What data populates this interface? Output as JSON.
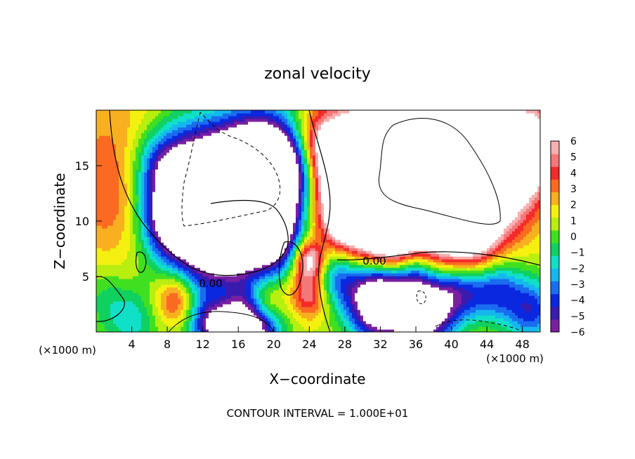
{
  "chart_data": {
    "type": "heatmap",
    "title": "zonal velocity",
    "xlabel": "X−coordinate",
    "ylabel": "Z−coordinate",
    "x_unit_left": "(×1000 m)",
    "x_unit_right": "(×1000 m)",
    "xlim": [
      0,
      50
    ],
    "ylim": [
      0,
      20
    ],
    "x_ticks": [
      4,
      8,
      12,
      16,
      20,
      24,
      28,
      32,
      36,
      40,
      44,
      48
    ],
    "y_ticks": [
      5,
      10,
      15
    ],
    "colorbar": {
      "range": [
        -6,
        6
      ],
      "ticks": [
        6,
        5,
        4,
        3,
        2,
        1,
        0,
        "−1",
        "−2",
        "−3",
        "−4",
        "−5",
        "−6"
      ],
      "colors": [
        "#7a1fa2",
        "#3a1bb0",
        "#0a28e0",
        "#1a6cf0",
        "#15b8ee",
        "#10e0c8",
        "#10d060",
        "#40e020",
        "#b8ee10",
        "#f4f010",
        "#f8b020",
        "#fb6a20",
        "#f52a2a",
        "#f57878",
        "#f7b0b0"
      ],
      "saturated_color": "#ffffff"
    },
    "contour_labels": [
      "0.00",
      "0.00"
    ],
    "contour_interval": "CONTOUR INTERVAL = 1.000E+01",
    "field_sources": [
      {
        "x": 1,
        "z": 19,
        "u": 1.0,
        "s": 6
      },
      {
        "x": 3,
        "z": 12,
        "u": 2.5,
        "s": 4
      },
      {
        "x": 5,
        "z": 16,
        "u": 0.5,
        "s": 4
      },
      {
        "x": 7,
        "z": 15,
        "u": -3.0,
        "s": 2.2
      },
      {
        "x": 8,
        "z": 10,
        "u": -4.0,
        "s": 2.2
      },
      {
        "x": 11,
        "z": 13,
        "u": -9.0,
        "s": 4
      },
      {
        "x": 14,
        "z": 10,
        "u": -10.0,
        "s": 4
      },
      {
        "x": 17,
        "z": 12,
        "u": -9.0,
        "s": 3.5
      },
      {
        "x": 19,
        "z": 16,
        "u": -8.0,
        "s": 3
      },
      {
        "x": 20,
        "z": 8,
        "u": -4.5,
        "s": 1.8
      },
      {
        "x": 22,
        "z": 15,
        "u": -4.0,
        "s": 2
      },
      {
        "x": 21,
        "z": 11,
        "u": -3.5,
        "s": 2
      },
      {
        "x": 25,
        "z": 17,
        "u": 3.0,
        "s": 2
      },
      {
        "x": 24,
        "z": 13,
        "u": -1.0,
        "s": 2
      },
      {
        "x": 29,
        "z": 14,
        "u": 10.0,
        "s": 3.5
      },
      {
        "x": 34,
        "z": 14,
        "u": 12.0,
        "s": 4.5
      },
      {
        "x": 40,
        "z": 14,
        "u": 11.0,
        "s": 4
      },
      {
        "x": 45,
        "z": 15,
        "u": 9.0,
        "s": 3.5
      },
      {
        "x": 49,
        "z": 17,
        "u": 5.0,
        "s": 2.5
      },
      {
        "x": 33,
        "z": 8.5,
        "u": 5.0,
        "s": 2.5
      },
      {
        "x": 42,
        "z": 7.5,
        "u": 4.5,
        "s": 2.5
      },
      {
        "x": 28,
        "z": 10,
        "u": 3.0,
        "s": 1.5
      },
      {
        "x": 24,
        "z": 6.5,
        "u": 6.0,
        "s": 1.2
      },
      {
        "x": 24,
        "z": 3.5,
        "u": 4.5,
        "s": 1.5
      },
      {
        "x": 27,
        "z": 5,
        "u": -4.0,
        "s": 1.8
      },
      {
        "x": 32,
        "z": 3,
        "u": -12.0,
        "s": 2.5
      },
      {
        "x": 37,
        "z": 2,
        "u": -10.0,
        "s": 2.2
      },
      {
        "x": 41,
        "z": 4,
        "u": -6.0,
        "s": 2
      },
      {
        "x": 45,
        "z": 4,
        "u": -5.0,
        "s": 2
      },
      {
        "x": 49,
        "z": 2,
        "u": -5.0,
        "s": 2
      },
      {
        "x": 14,
        "z": 1,
        "u": -9.0,
        "s": 2.2
      },
      {
        "x": 18,
        "z": 0.5,
        "u": -8.0,
        "s": 2
      },
      {
        "x": 9,
        "z": 3,
        "u": 4.0,
        "s": 1.6
      },
      {
        "x": 14,
        "z": 3,
        "u": 3.5,
        "s": 1.5
      },
      {
        "x": 19,
        "z": 2.5,
        "u": 4.0,
        "s": 1.5
      },
      {
        "x": 4,
        "z": 1,
        "u": -2.5,
        "s": 2
      },
      {
        "x": 1,
        "z": 3,
        "u": -1.5,
        "s": 2
      },
      {
        "x": 36,
        "z": 6,
        "u": -3.0,
        "s": 1.5
      }
    ],
    "field_ambient": 1.0
  }
}
